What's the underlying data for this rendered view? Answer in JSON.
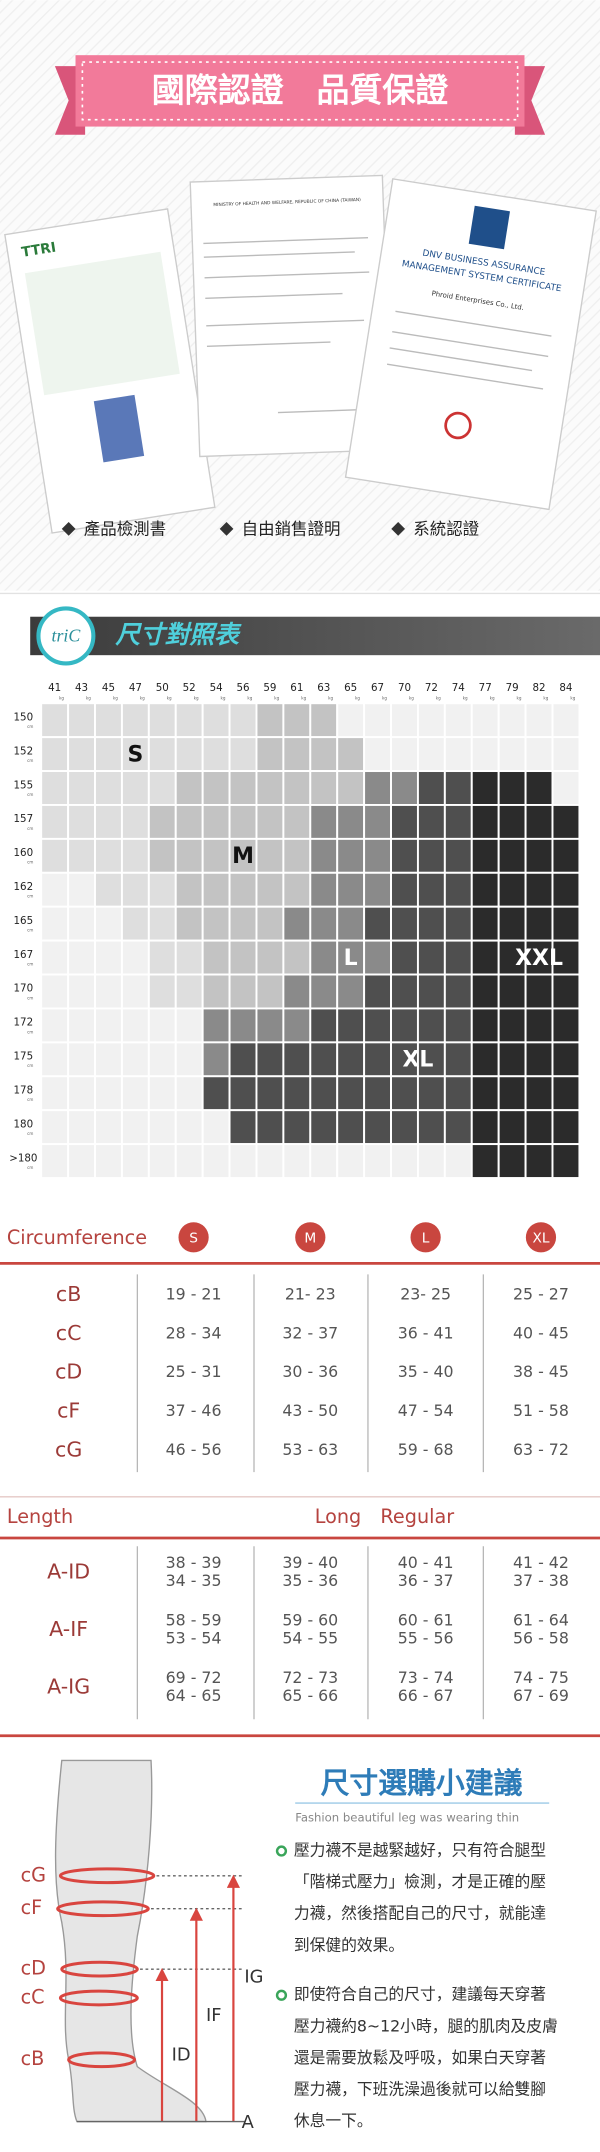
{
  "certification": {
    "title": "國際認證　品質保證",
    "items": [
      "產品檢測書",
      "自由銷售證明",
      "系統認證"
    ],
    "documents": [
      "TTRI",
      "MINISTRY OF HEALTH AND WELFARE, REPUBLIC OF CHINA (TAIWAN)",
      "DNV BUSINESS ASSURANCE",
      "MANAGEMENT SYSTEM CERTIFICATE",
      "Phroid Enterprises Co., Ltd."
    ]
  },
  "size_chart": {
    "logo": "triC",
    "title": "尺寸對照表",
    "weights": [
      41,
      43,
      45,
      47,
      50,
      52,
      54,
      56,
      59,
      61,
      63,
      65,
      67,
      70,
      72,
      74,
      77,
      79,
      82,
      84
    ],
    "weight_unit": "kg",
    "heights": [
      "150",
      "152",
      "155",
      "157",
      "160",
      "162",
      "165",
      "167",
      "170",
      "172",
      "175",
      "178",
      "180",
      ">180"
    ],
    "height_unit": "cm",
    "sizes": [
      "S",
      "M",
      "L",
      "XL",
      "XXL"
    ],
    "shades": [
      "#f1f1f1",
      "#dedede",
      "#c3c3c3",
      "#8a8a8a",
      "#4f4f4f",
      "#2b2b2b"
    ],
    "cells": [
      "11111111222000000000",
      "11111111222200000000",
      "11111222222233445550",
      "11112222223334445555",
      "11112222223334445555",
      "00111222223334445555",
      "00011222233344445555",
      "00001122223334445555",
      "00001122233344445555",
      "00000033334444445555",
      "00000034444444445555",
      "00000044444444445555",
      "00000004444444445555",
      "00000000000000005555"
    ]
  },
  "circumference": {
    "title": "Circumference",
    "sizes": [
      "S",
      "M",
      "L",
      "XL"
    ],
    "rows": [
      {
        "label": "cB",
        "values": [
          "19 - 21",
          "21- 23",
          "23- 25",
          "25 - 27"
        ]
      },
      {
        "label": "cC",
        "values": [
          "28 - 34",
          "32 - 37",
          "36 - 41",
          "40 - 45"
        ]
      },
      {
        "label": "cD",
        "values": [
          "25 - 31",
          "30 - 36",
          "35 - 40",
          "38 - 45"
        ]
      },
      {
        "label": "cF",
        "values": [
          "37 - 46",
          "43 - 50",
          "47 - 54",
          "51 - 58"
        ]
      },
      {
        "label": "cG",
        "values": [
          "46 - 56",
          "53 - 63",
          "59 - 68",
          "63 - 72"
        ]
      }
    ]
  },
  "length": {
    "title": "Length",
    "subtitle": "Long　Regular",
    "rows": [
      {
        "label": "A-ID",
        "values": [
          [
            "38 - 39",
            "34 - 35"
          ],
          [
            "39 - 40",
            "35 - 36"
          ],
          [
            "40 - 41",
            "36 - 37"
          ],
          [
            "41 - 42",
            "37 - 38"
          ]
        ]
      },
      {
        "label": "A-IF",
        "values": [
          [
            "58 - 59",
            "53 - 54"
          ],
          [
            "59 - 60",
            "54 - 55"
          ],
          [
            "60 - 61",
            "55 - 56"
          ],
          [
            "61 - 64",
            "56 - 58"
          ]
        ]
      },
      {
        "label": "A-IG",
        "values": [
          [
            "69 - 72",
            "64 - 65"
          ],
          [
            "72 - 73",
            "65 - 66"
          ],
          [
            "73 - 74",
            "66 - 67"
          ],
          [
            "74 - 75",
            "67 - 69"
          ]
        ]
      }
    ]
  },
  "diagram": {
    "labels": [
      "cG",
      "cF",
      "cD",
      "cC",
      "cB"
    ],
    "measures": [
      "IG",
      "IF",
      "ID",
      "A"
    ]
  },
  "advice": {
    "title": "尺寸選購小建議",
    "subtitle": "Fashion beautiful leg was wearing thin",
    "bullets": [
      [
        "壓力襪不是越緊越好，只有符合腿型",
        "「階梯式壓力」檢測，才是正確的壓",
        "力襪，然後搭配自己的尺寸，就能達",
        "到保健的效果。"
      ],
      [
        "即使符合自己的尺寸，建議每天穿著",
        "壓力襪約8~12小時，腿的肌肉及皮膚",
        "還是需要放鬆及呼吸，如果白天穿著",
        "壓力襪，下班洗澡過後就可以給雙腳",
        "休息一下。"
      ]
    ]
  }
}
